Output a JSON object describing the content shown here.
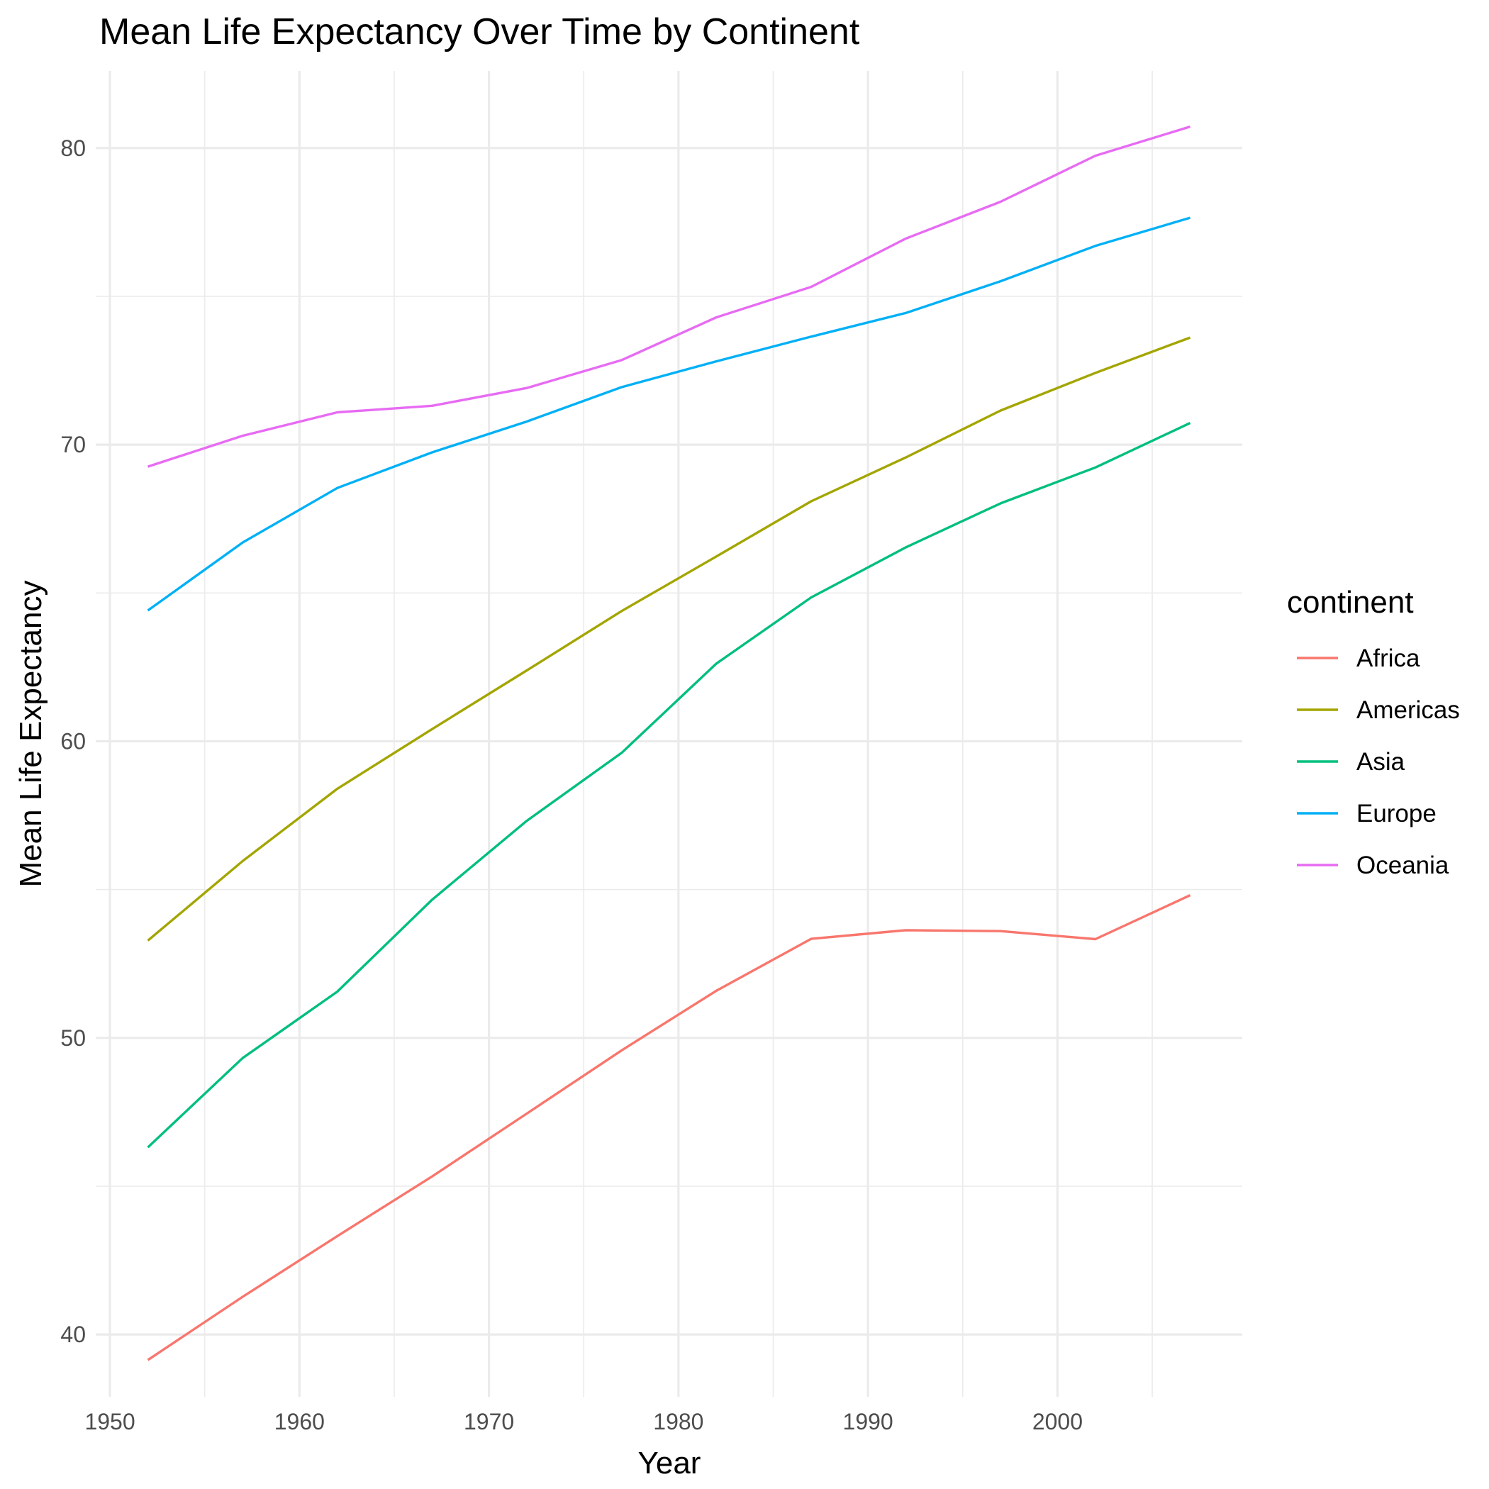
{
  "chart_data": {
    "type": "line",
    "title": "Mean Life Expectancy Over Time by Continent",
    "xlabel": "Year",
    "ylabel": "Mean Life Expectancy",
    "xlim": [
      1949.25,
      2009.75
    ],
    "ylim": [
      37.9,
      82.6
    ],
    "x_ticks": [
      1950,
      1960,
      1970,
      1980,
      1990,
      2000
    ],
    "x_minor_ticks": [
      1955,
      1965,
      1975,
      1985,
      1995,
      2005
    ],
    "y_ticks": [
      40,
      50,
      60,
      70,
      80
    ],
    "y_minor_ticks": [
      45,
      55,
      65,
      75
    ],
    "grid": true,
    "legend": {
      "title": "continent",
      "position": "right"
    },
    "x": [
      1952,
      1957,
      1962,
      1967,
      1972,
      1977,
      1982,
      1987,
      1992,
      1997,
      2002,
      2007
    ],
    "series": [
      {
        "name": "Africa",
        "color": "#F8766D",
        "values": [
          39.14,
          41.27,
          43.32,
          45.33,
          47.45,
          49.58,
          51.59,
          53.34,
          53.63,
          53.6,
          53.33,
          54.81
        ]
      },
      {
        "name": "Americas",
        "color": "#A3A500",
        "values": [
          53.28,
          55.96,
          58.4,
          60.41,
          62.39,
          64.39,
          66.23,
          68.09,
          69.57,
          71.15,
          72.42,
          73.61
        ]
      },
      {
        "name": "Asia",
        "color": "#00BF7D",
        "values": [
          46.31,
          49.32,
          51.56,
          54.66,
          57.32,
          59.61,
          62.62,
          64.85,
          66.54,
          68.02,
          69.23,
          70.73
        ]
      },
      {
        "name": "Europe",
        "color": "#00B0F6",
        "values": [
          64.41,
          66.7,
          68.54,
          69.74,
          70.78,
          71.94,
          72.81,
          73.64,
          74.44,
          75.51,
          76.7,
          77.65
        ]
      },
      {
        "name": "Oceania",
        "color": "#E76BF3",
        "values": [
          69.26,
          70.3,
          71.09,
          71.31,
          71.91,
          72.85,
          74.29,
          75.32,
          76.95,
          78.19,
          79.74,
          80.72
        ]
      }
    ]
  }
}
